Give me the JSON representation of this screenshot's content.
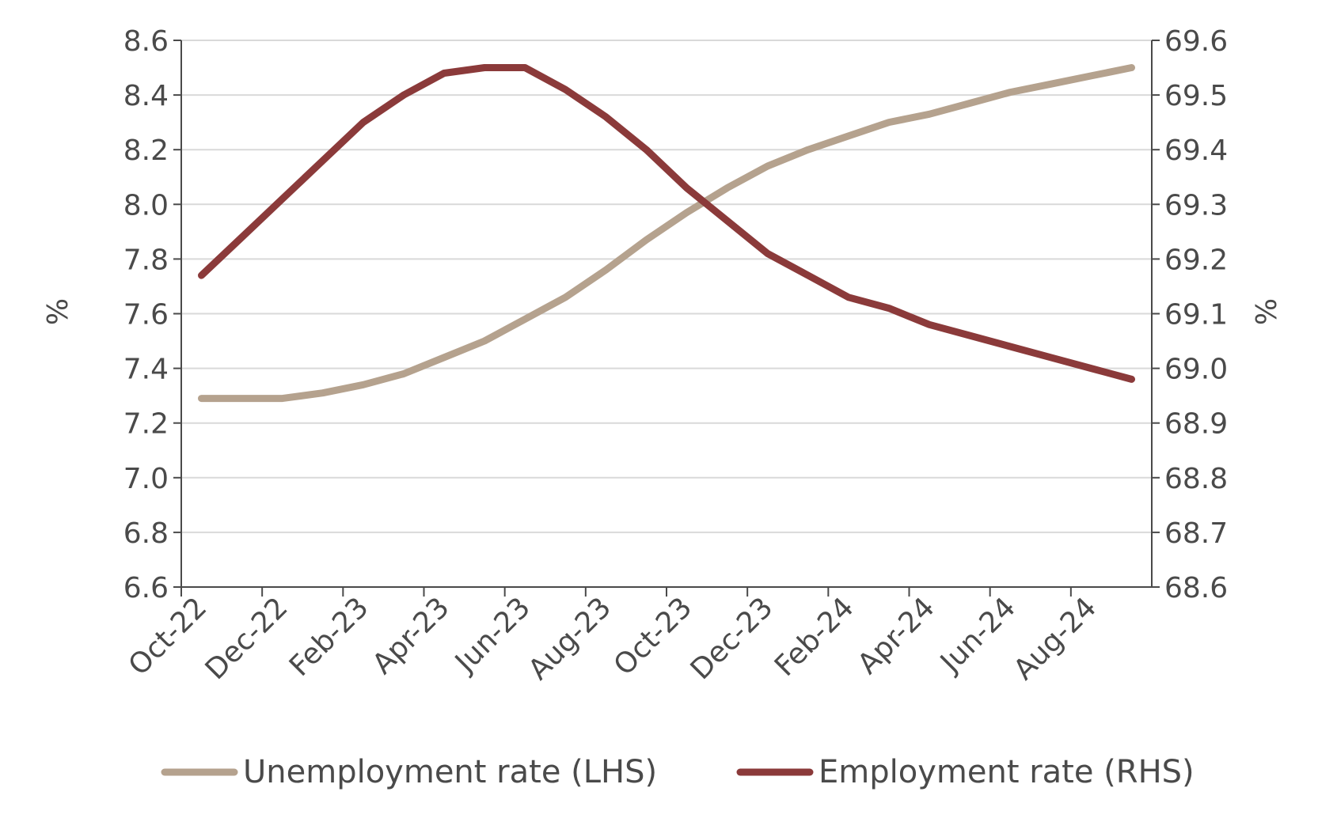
{
  "chart_data": {
    "type": "line",
    "title": "",
    "x": [
      "Oct-22",
      "Nov-22",
      "Dec-22",
      "Jan-23",
      "Feb-23",
      "Mar-23",
      "Apr-23",
      "May-23",
      "Jun-23",
      "Jul-23",
      "Aug-23",
      "Sep-23",
      "Oct-23",
      "Nov-23",
      "Dec-23",
      "Jan-24",
      "Feb-24",
      "Mar-24",
      "Apr-24",
      "May-24",
      "Jun-24",
      "Jul-24",
      "Aug-24",
      "Sep-24"
    ],
    "x_tick_labels": [
      "Oct-22",
      "Dec-22",
      "Feb-23",
      "Apr-23",
      "Jun-23",
      "Aug-23",
      "Oct-23",
      "Dec-23",
      "Feb-24",
      "Apr-24",
      "Jun-24",
      "Aug-24"
    ],
    "y_left": {
      "label": "%",
      "lim": [
        6.6,
        8.6
      ],
      "ticks": [
        "6.6",
        "6.8",
        "7.0",
        "7.2",
        "7.4",
        "7.6",
        "7.8",
        "8.0",
        "8.2",
        "8.4",
        "8.6"
      ]
    },
    "y_right": {
      "label": "%",
      "lim": [
        68.6,
        69.6
      ],
      "ticks": [
        "68.6",
        "68.7",
        "68.8",
        "68.9",
        "69.0",
        "69.1",
        "69.2",
        "69.3",
        "69.4",
        "69.5",
        "69.6"
      ]
    },
    "grid": "horizontal",
    "legend_position": "bottom",
    "series": [
      {
        "name": "Unemployment rate (LHS)",
        "axis": "left",
        "color": "#b5a28e",
        "values": [
          7.29,
          7.29,
          7.29,
          7.31,
          7.34,
          7.38,
          7.44,
          7.5,
          7.58,
          7.66,
          7.76,
          7.87,
          7.97,
          8.06,
          8.14,
          8.2,
          8.25,
          8.3,
          8.33,
          8.37,
          8.41,
          8.44,
          8.47,
          8.5
        ]
      },
      {
        "name": "Employment rate (RHS)",
        "axis": "right",
        "color": "#8b3a3a",
        "values": [
          69.17,
          69.24,
          69.31,
          69.38,
          69.45,
          69.5,
          69.54,
          69.55,
          69.55,
          69.51,
          69.46,
          69.4,
          69.33,
          69.27,
          69.21,
          69.17,
          69.13,
          69.11,
          69.08,
          69.06,
          69.04,
          69.02,
          69.0,
          68.98
        ]
      }
    ]
  }
}
